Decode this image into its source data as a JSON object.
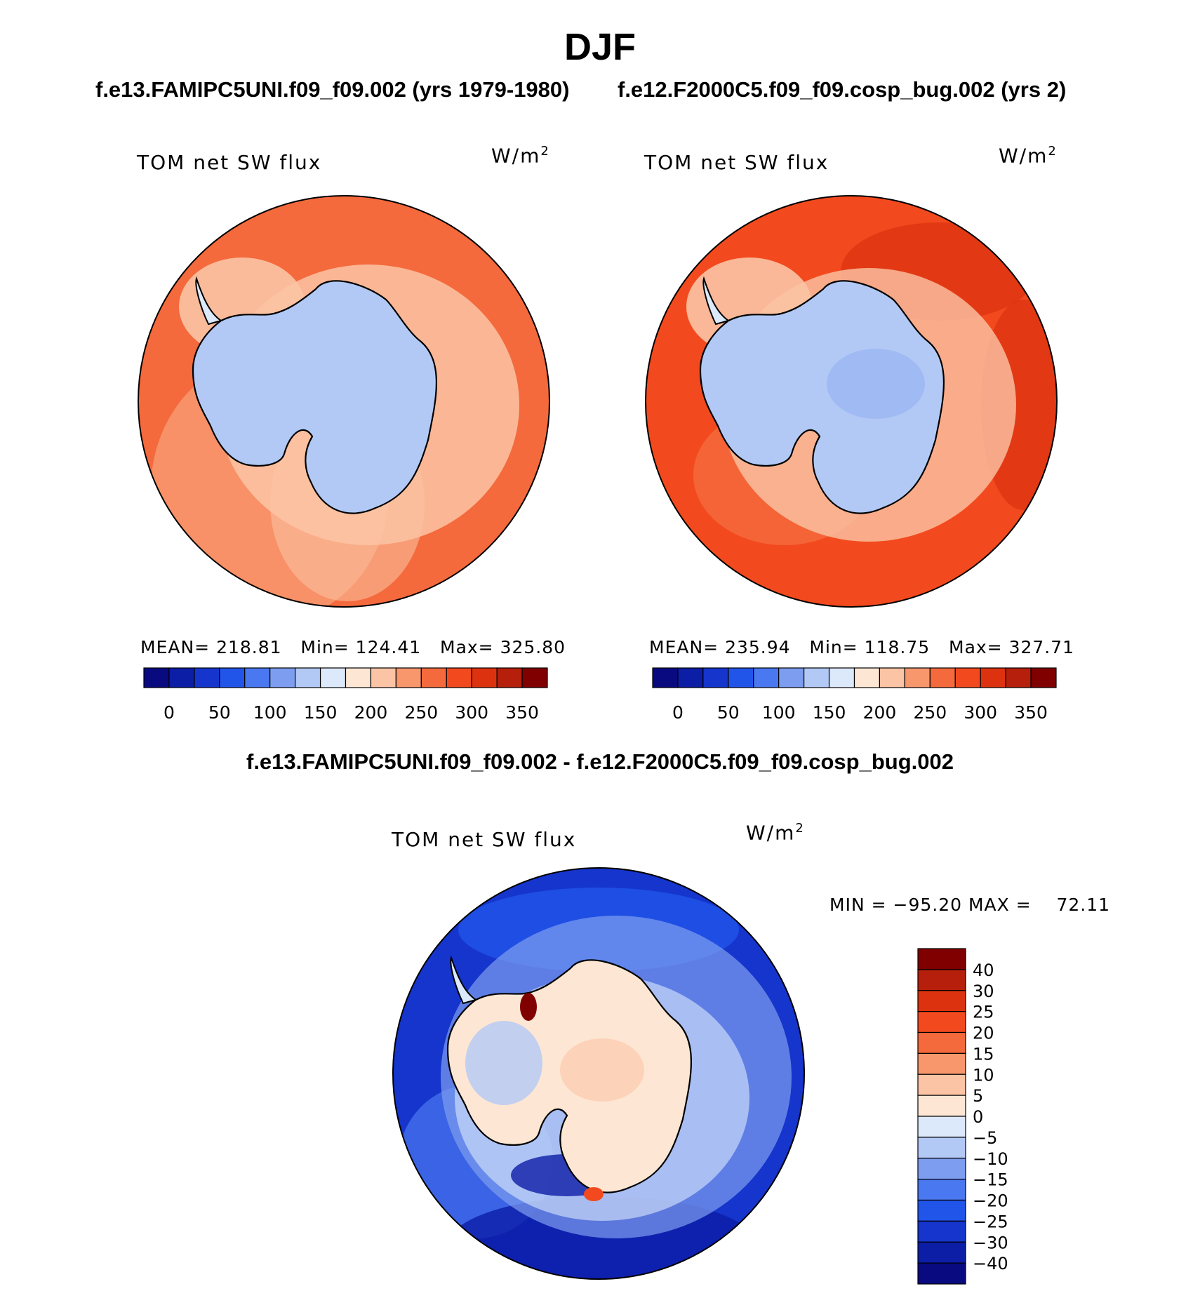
{
  "title": "DJF",
  "case1_title": "f.e13.FAMIPC5UNI.f09_f09.002 (yrs 1979-1980)",
  "case2_title": "f.e12.F2000C5.f09_f09.cosp_bug.002 (yrs 2)",
  "diff_title": "f.e13.FAMIPC5UNI.f09_f09.002 - f.e12.F2000C5.f09_f09.cosp_bug.002",
  "variable_label": "TOM net SW flux",
  "units": "W/m",
  "units_exp": "2",
  "panel1": {
    "mean_label": "MEAN=",
    "mean": "218.81",
    "min_label": "Min=",
    "min": "124.41",
    "max_label": "Max=",
    "max": "325.80"
  },
  "panel2": {
    "mean_label": "MEAN=",
    "mean": "235.94",
    "min_label": "Min=",
    "min": "118.75",
    "max_label": "Max=",
    "max": "327.71"
  },
  "diff_panel": {
    "min_label": "MIN =",
    "min": "−95.20",
    "max_label": "MAX =",
    "max": "72.11"
  },
  "colors": {
    "abs_scale": [
      "#0a0a80",
      "#0c1da6",
      "#1535cc",
      "#2155ea",
      "#4a78f0",
      "#7d9ef0",
      "#b3c9f5",
      "#dce9fb",
      "#fde7d4",
      "#fbc4a5",
      "#f8966c",
      "#f46a3d",
      "#f24a1e",
      "#dc3210",
      "#b51f0c",
      "#800000"
    ],
    "diff_scale": [
      "#0a0a80",
      "#0c1da6",
      "#1535cc",
      "#2155ea",
      "#4a78f0",
      "#7d9ef0",
      "#b3c9f5",
      "#dce9fb",
      "#fde7d4",
      "#fbc4a5",
      "#f8966c",
      "#f46a3d",
      "#f24a1e",
      "#dc3210",
      "#b51f0c",
      "#800000"
    ],
    "ocean_1": "#f46a3d",
    "ocean_2": "#f24a1e",
    "land_abs": "#b3c9f5",
    "diff_ocean": "#1535cc",
    "diff_land": "#fde7d4"
  },
  "colorbar_abs_ticks": [
    "0",
    "50",
    "100",
    "150",
    "200",
    "250",
    "300",
    "350"
  ],
  "colorbar_diff_ticks": [
    "40",
    "30",
    "25",
    "20",
    "15",
    "10",
    "5",
    "0",
    "−5",
    "−10",
    "−15",
    "−20",
    "−25",
    "−30",
    "−40"
  ]
}
